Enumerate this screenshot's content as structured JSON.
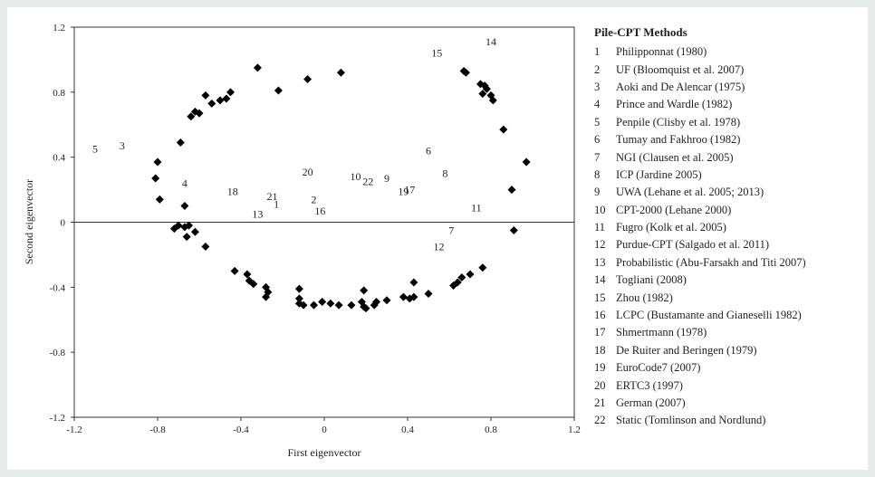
{
  "chart_data": {
    "type": "scatter",
    "xlabel": "First eigenvector",
    "ylabel": "Second eigenvector",
    "xlim": [
      -1.2,
      1.2
    ],
    "ylim": [
      -1.2,
      1.2
    ],
    "xticks": [
      "-1.2",
      "-0.8",
      "-0.4",
      "0",
      "0.4",
      "0.8",
      "1.2"
    ],
    "yticks": [
      "1.2",
      "0.8",
      "0.4",
      "0",
      "-0.4",
      "-0.8",
      "-1.2"
    ],
    "xtick_values": [
      -1.2,
      -0.8,
      -0.4,
      0,
      0.4,
      0.8,
      1.2
    ],
    "ytick_values": [
      1.2,
      0.8,
      0.4,
      0,
      -0.4,
      -0.8,
      -1.2
    ],
    "grid": false,
    "legend_position": "right",
    "marker_color": "#000000",
    "points": [
      [
        -0.32,
        0.95
      ],
      [
        -0.22,
        0.81
      ],
      [
        -0.08,
        0.88
      ],
      [
        0.08,
        0.92
      ],
      [
        -0.45,
        0.8
      ],
      [
        -0.47,
        0.76
      ],
      [
        -0.5,
        0.75
      ],
      [
        -0.54,
        0.73
      ],
      [
        -0.57,
        0.78
      ],
      [
        -0.62,
        0.68
      ],
      [
        -0.64,
        0.65
      ],
      [
        -0.6,
        0.67
      ],
      [
        -0.69,
        0.49
      ],
      [
        -0.8,
        0.37
      ],
      [
        -0.81,
        0.27
      ],
      [
        -0.79,
        0.14
      ],
      [
        -0.67,
        0.1
      ],
      [
        -0.65,
        -0.02
      ],
      [
        -0.67,
        -0.03
      ],
      [
        -0.7,
        -0.02
      ],
      [
        -0.72,
        -0.04
      ],
      [
        -0.66,
        -0.09
      ],
      [
        -0.62,
        -0.06
      ],
      [
        -0.57,
        -0.15
      ],
      [
        -0.43,
        -0.3
      ],
      [
        -0.37,
        -0.32
      ],
      [
        -0.36,
        -0.36
      ],
      [
        -0.34,
        -0.38
      ],
      [
        -0.28,
        -0.4
      ],
      [
        -0.27,
        -0.43
      ],
      [
        -0.28,
        -0.46
      ],
      [
        -0.12,
        -0.41
      ],
      [
        -0.12,
        -0.47
      ],
      [
        -0.12,
        -0.5
      ],
      [
        -0.1,
        -0.51
      ],
      [
        -0.05,
        -0.51
      ],
      [
        -0.01,
        -0.49
      ],
      [
        0.03,
        -0.5
      ],
      [
        0.07,
        -0.51
      ],
      [
        0.13,
        -0.51
      ],
      [
        0.18,
        -0.49
      ],
      [
        0.19,
        -0.52
      ],
      [
        0.2,
        -0.53
      ],
      [
        0.24,
        -0.51
      ],
      [
        0.25,
        -0.49
      ],
      [
        0.3,
        -0.48
      ],
      [
        0.19,
        -0.42
      ],
      [
        0.38,
        -0.46
      ],
      [
        0.41,
        -0.47
      ],
      [
        0.43,
        -0.46
      ],
      [
        0.43,
        -0.37
      ],
      [
        0.5,
        -0.44
      ],
      [
        0.62,
        -0.39
      ],
      [
        0.64,
        -0.37
      ],
      [
        0.66,
        -0.34
      ],
      [
        0.7,
        -0.32
      ],
      [
        0.76,
        -0.28
      ],
      [
        0.91,
        -0.05
      ],
      [
        0.9,
        0.2
      ],
      [
        0.97,
        0.37
      ],
      [
        0.86,
        0.57
      ],
      [
        0.81,
        0.75
      ],
      [
        0.8,
        0.78
      ],
      [
        0.78,
        0.82
      ],
      [
        0.76,
        0.79
      ],
      [
        0.77,
        0.84
      ],
      [
        0.75,
        0.85
      ],
      [
        0.68,
        0.92
      ],
      [
        0.67,
        0.93
      ]
    ],
    "method_labels": [
      {
        "text": "1",
        "x": -0.23,
        "y": 0.11
      },
      {
        "text": "2",
        "x": -0.05,
        "y": 0.14
      },
      {
        "text": "3",
        "x": -0.97,
        "y": 0.47
      },
      {
        "text": "4",
        "x": -0.67,
        "y": 0.24
      },
      {
        "text": "5",
        "x": -1.1,
        "y": 0.45
      },
      {
        "text": "6",
        "x": 0.5,
        "y": 0.44
      },
      {
        "text": "7",
        "x": 0.61,
        "y": -0.05
      },
      {
        "text": "8",
        "x": 0.58,
        "y": 0.3
      },
      {
        "text": "9",
        "x": 0.3,
        "y": 0.27
      },
      {
        "text": "10",
        "x": 0.15,
        "y": 0.28
      },
      {
        "text": "11",
        "x": 0.73,
        "y": 0.09
      },
      {
        "text": "12",
        "x": 0.55,
        "y": -0.15
      },
      {
        "text": "13",
        "x": -0.32,
        "y": 0.05
      },
      {
        "text": "14",
        "x": 0.8,
        "y": 1.11
      },
      {
        "text": "15",
        "x": 0.54,
        "y": 1.04
      },
      {
        "text": "16",
        "x": -0.02,
        "y": 0.07
      },
      {
        "text": "17",
        "x": 0.41,
        "y": 0.2
      },
      {
        "text": "18",
        "x": -0.44,
        "y": 0.19
      },
      {
        "text": "19",
        "x": 0.38,
        "y": 0.19
      },
      {
        "text": "20",
        "x": -0.08,
        "y": 0.31
      },
      {
        "text": "21",
        "x": -0.25,
        "y": 0.16
      },
      {
        "text": "22",
        "x": 0.21,
        "y": 0.25
      }
    ]
  },
  "legend": {
    "title": "Pile-CPT Methods",
    "items": [
      {
        "num": "1",
        "label": "Philipponnat (1980)"
      },
      {
        "num": "2",
        "label": "UF (Bloomquist et al. 2007)"
      },
      {
        "num": "3",
        "label": "Aoki and De Alencar (1975)"
      },
      {
        "num": "4",
        "label": "Prince and Wardle (1982)"
      },
      {
        "num": "5",
        "label": "Penpile (Clisby et al. 1978)"
      },
      {
        "num": "6",
        "label": "Tumay and Fakhroo (1982)"
      },
      {
        "num": "7",
        "label": "NGI (Clausen et al. 2005)"
      },
      {
        "num": "8",
        "label": "ICP (Jardine 2005)"
      },
      {
        "num": "9",
        "label": "UWA (Lehane et al. 2005; 2013)"
      },
      {
        "num": "10",
        "label": "CPT-2000 (Lehane 2000)"
      },
      {
        "num": "11",
        "label": "Fugro (Kolk et al. 2005)"
      },
      {
        "num": "12",
        "label": "Purdue-CPT (Salgado et al. 2011)"
      },
      {
        "num": "13",
        "label": "Probabilistic (Abu-Farsakh and Titi 2007)"
      },
      {
        "num": "14",
        "label": "Togliani (2008)"
      },
      {
        "num": "15",
        "label": "Zhou (1982)"
      },
      {
        "num": "16",
        "label": "LCPC (Bustamante and Gianeselli 1982)"
      },
      {
        "num": "17",
        "label": "Shmertmann (1978)"
      },
      {
        "num": "18",
        "label": "De Ruiter and Beringen (1979)"
      },
      {
        "num": "19",
        "label": "EuroCode7 (2007)"
      },
      {
        "num": "20",
        "label": "ERTC3 (1997)"
      },
      {
        "num": "21",
        "label": "German (2007)"
      },
      {
        "num": "22",
        "label": "Static (Tomlinson and Nordlund)"
      }
    ]
  }
}
